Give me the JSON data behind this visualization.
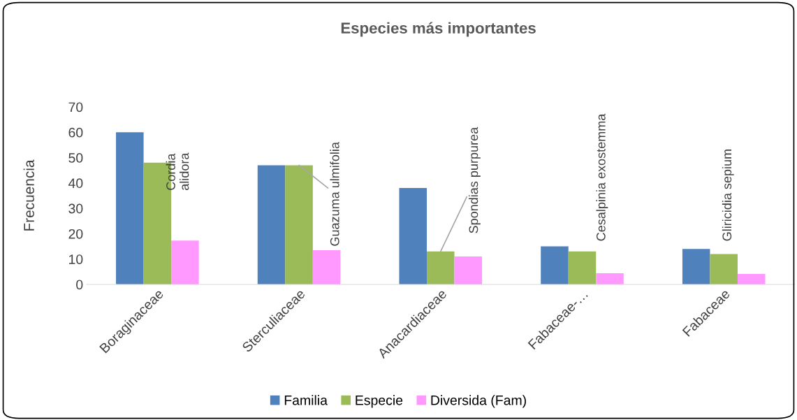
{
  "chart_data": {
    "type": "bar",
    "title": "Especies más importantes",
    "ylabel": "Frecuencia",
    "categories": [
      "Boraginaceae",
      "Sterculiaceae",
      "Anacardiaceae",
      "Fabaceae-…",
      "Fabaceae"
    ],
    "series": [
      {
        "name": "Familia",
        "color": "#4f81bd",
        "values": [
          60,
          47,
          38,
          15,
          14
        ]
      },
      {
        "name": "Especie",
        "color": "#9bbb59",
        "values": [
          48,
          47,
          13,
          13,
          12
        ]
      },
      {
        "name": "Diversida (Fam)",
        "color": "#ff99ff",
        "values": [
          17.3,
          13.5,
          11,
          4.4,
          4.1
        ]
      }
    ],
    "annotations": [
      {
        "text": "Cordia\nalidora",
        "x": "Boraginaceae",
        "y": 48
      },
      {
        "text": "Guazuma ulmifolia",
        "x": "Sterculiaceae",
        "y": 47
      },
      {
        "text": "Spondias purpurea",
        "x": "Anacardiaceae",
        "y": 13
      },
      {
        "text": "Cesalpinia exostemma",
        "x": "Fabaceae-…",
        "y": 13
      },
      {
        "text": "Gliricidia sepium",
        "x": "Fabaceae",
        "y": 12
      }
    ],
    "ylim": [
      0,
      70
    ],
    "yticks": [
      0,
      10,
      20,
      30,
      40,
      50,
      60,
      70
    ],
    "grid": false,
    "legend": "bottom"
  }
}
